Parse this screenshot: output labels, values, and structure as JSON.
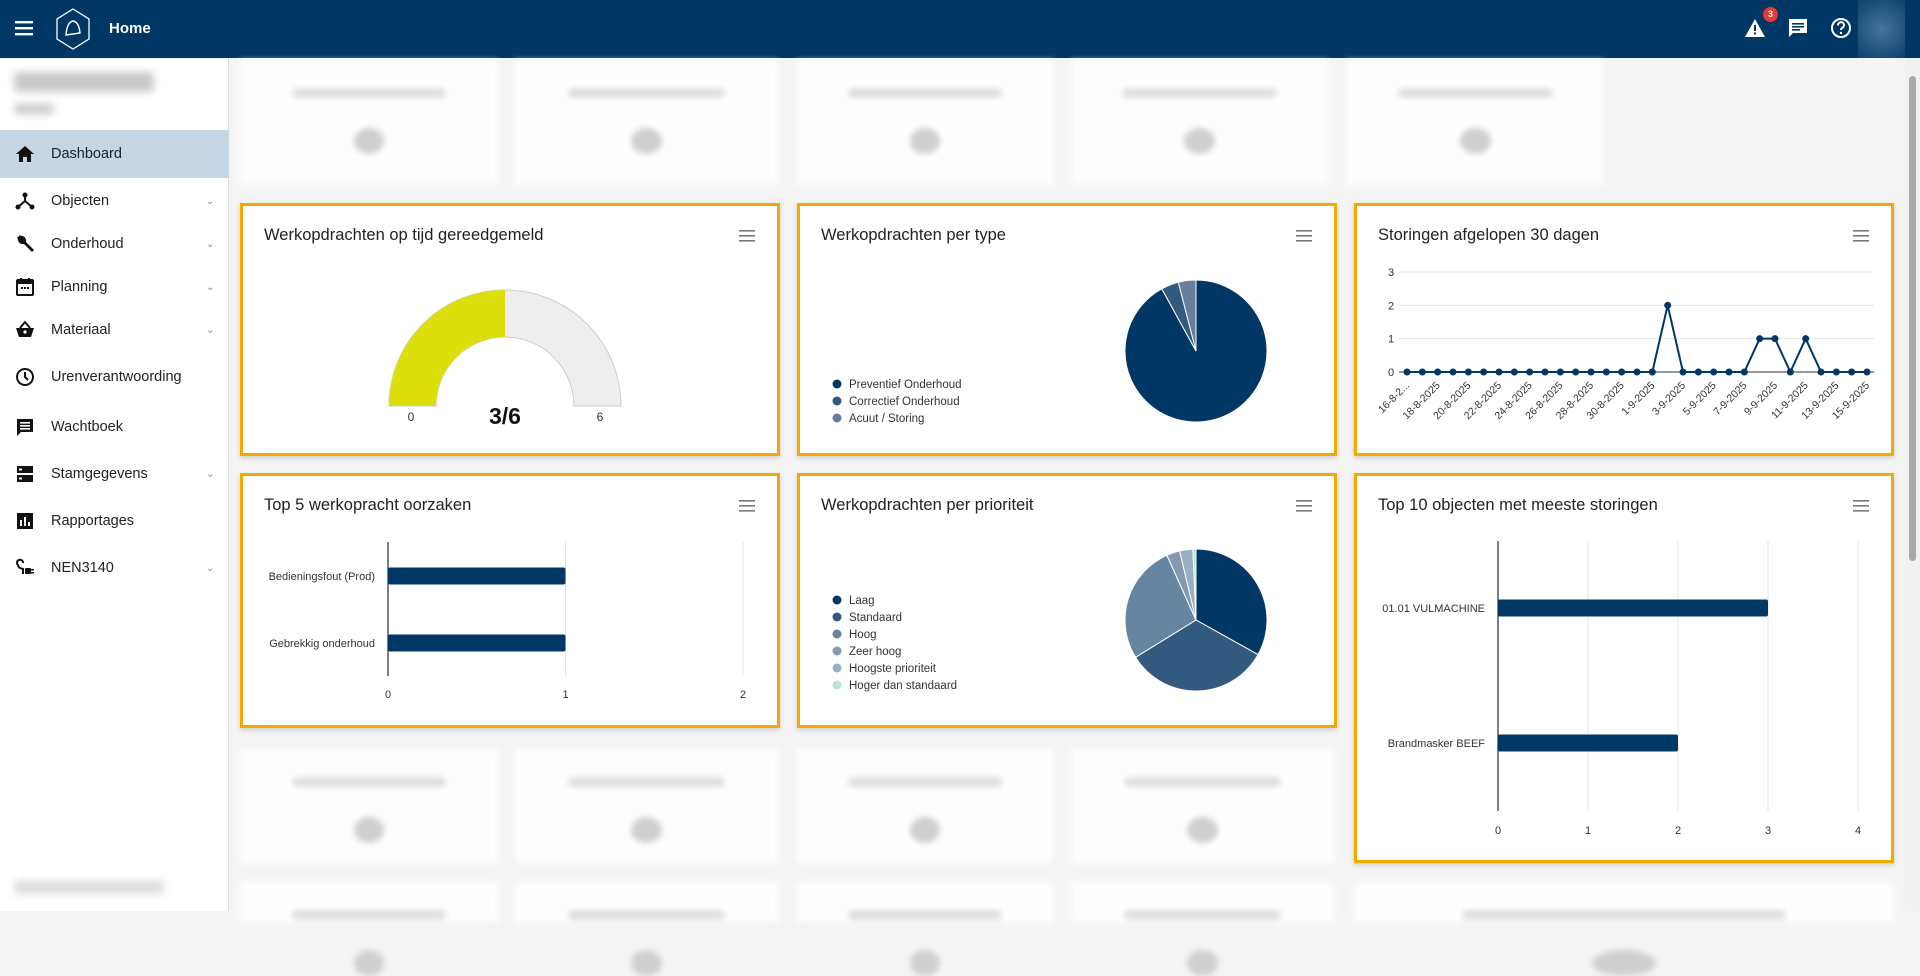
{
  "header": {
    "title": "Home",
    "alert_count": "3"
  },
  "sidebar": {
    "items": [
      {
        "label": "Dashboard",
        "icon": "home-icon",
        "expandable": false,
        "active": true
      },
      {
        "label": "Objecten",
        "icon": "hierarchy-icon",
        "expandable": true
      },
      {
        "label": "Onderhoud",
        "icon": "wrench-icon",
        "expandable": true
      },
      {
        "label": "Planning",
        "icon": "calendar-icon",
        "expandable": true
      },
      {
        "label": "Materiaal",
        "icon": "basket-icon",
        "expandable": true
      },
      {
        "label": "Urenverantwoording",
        "icon": "clock-icon",
        "expandable": false
      },
      {
        "label": "Wachtboek",
        "icon": "message-icon",
        "expandable": false
      },
      {
        "label": "Stamgegevens",
        "icon": "storage-icon",
        "expandable": true
      },
      {
        "label": "Rapportages",
        "icon": "bar-chart-icon",
        "expandable": false
      },
      {
        "label": "NEN3140",
        "icon": "plug-icon",
        "expandable": true
      }
    ]
  },
  "colors": {
    "brand": "#003764",
    "highlight": "#f5a800",
    "gauge": "#dddf0d",
    "alert": "#e53935"
  },
  "chart_data": [
    {
      "type": "gauge",
      "title": "Werkopdrachten op tijd gereedgemeld",
      "value": 3,
      "min": 0,
      "max": 6,
      "min_label": "0",
      "max_label": "6",
      "value_label": "3/6"
    },
    {
      "type": "pie",
      "title": "Werkopdrachten per type",
      "categories": [
        "Preventief Onderhoud",
        "Correctief Onderhoud",
        "Acuut / Storing"
      ],
      "values": [
        92,
        4,
        4
      ],
      "colors": [
        "#003764",
        "#33597f",
        "#667f9b"
      ],
      "legend": "left"
    },
    {
      "type": "line",
      "title": "Storingen afgelopen 30 dagen",
      "x": [
        "16-8-2...",
        "17-8-2025",
        "18-8-2025",
        "19-8-2025",
        "20-8-2025",
        "21-8-2025",
        "22-8-2025",
        "23-8-2025",
        "24-8-2025",
        "25-8-2025",
        "26-8-2025",
        "27-8-2025",
        "28-8-2025",
        "29-8-2025",
        "30-8-2025",
        "31-8-2025",
        "1-9-2025",
        "2-9-2025",
        "3-9-2025",
        "4-9-2025",
        "5-9-2025",
        "6-9-2025",
        "7-9-2025",
        "8-9-2025",
        "9-9-2025",
        "10-9-2025",
        "11-9-2025",
        "12-9-2025",
        "13-9-2025",
        "14-9-2025",
        "15-9-2025"
      ],
      "values": [
        0,
        0,
        0,
        0,
        0,
        0,
        0,
        0,
        0,
        0,
        0,
        0,
        0,
        0,
        0,
        0,
        0,
        2,
        0,
        0,
        0,
        0,
        0,
        1,
        1,
        0,
        1,
        0,
        0,
        0,
        0
      ],
      "ylim": [
        0,
        3
      ],
      "yticks": [
        "0",
        "1",
        "2",
        "3"
      ],
      "grid": true
    },
    {
      "type": "bar",
      "title": "Top 5 werkopracht oorzaken",
      "categories": [
        "Bedieningsfout (Prod)",
        "Gebrekkig onderhoud"
      ],
      "values": [
        1,
        1
      ],
      "xlim": [
        0,
        2
      ],
      "ticks": [
        "0",
        "1",
        "2"
      ]
    },
    {
      "type": "pie",
      "title": "Werkopdrachten per prioriteit",
      "categories": [
        "Laag",
        "Standaard",
        "Hoog",
        "Zeer hoog",
        "Hoogste prioriteit",
        "Hoger dan standaard"
      ],
      "values": [
        33,
        33,
        27,
        3,
        3,
        0.7
      ],
      "colors": [
        "#003764",
        "#33597f",
        "#6685a0",
        "#8299b0",
        "#99afc4",
        "#b3e6d6"
      ],
      "legend": "left"
    },
    {
      "type": "bar",
      "title": "Top 10 objecten met meeste storingen",
      "categories": [
        "01.01 VULMACHINE",
        "Brandmasker BEEF"
      ],
      "values": [
        3,
        2
      ],
      "xlim": [
        0,
        4
      ],
      "ticks": [
        "0",
        "1",
        "2",
        "3",
        "4"
      ]
    }
  ]
}
